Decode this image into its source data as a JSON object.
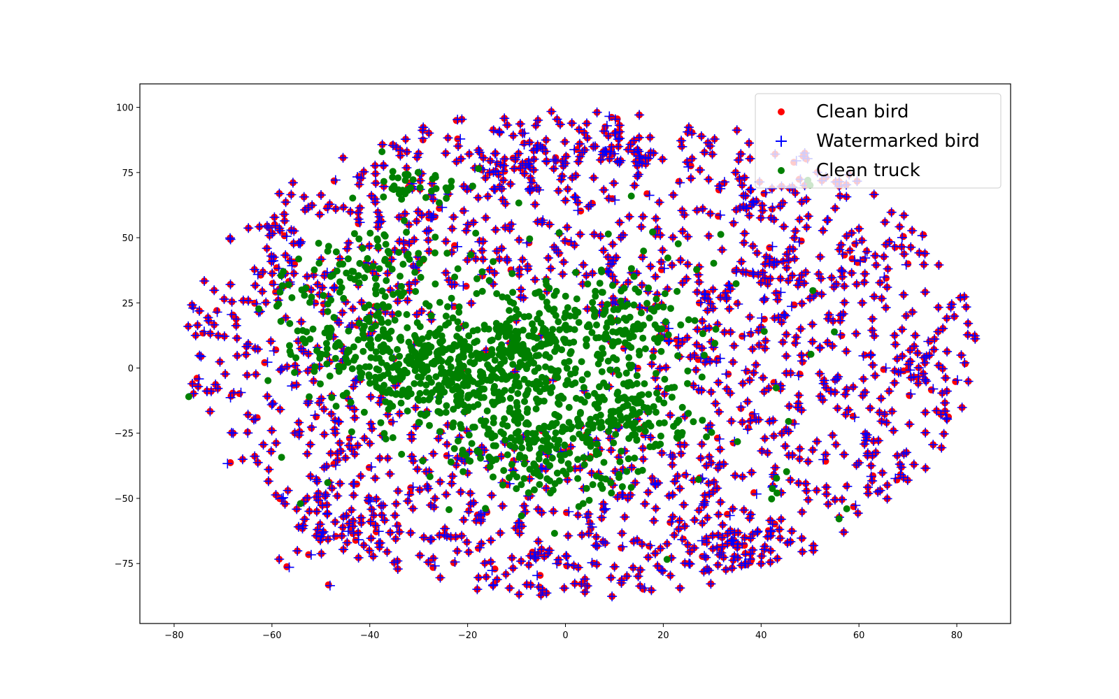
{
  "chart_data": {
    "type": "scatter",
    "title": "",
    "xlabel": "",
    "ylabel": "",
    "xlim": [
      -87,
      91
    ],
    "ylim": [
      -98,
      109
    ],
    "xticks": [
      -80,
      -60,
      -40,
      -20,
      0,
      20,
      40,
      60,
      80
    ],
    "yticks": [
      -75,
      -50,
      -25,
      0,
      25,
      50,
      75,
      100
    ],
    "x_tick_labels": [
      "−80",
      "−60",
      "−40",
      "−20",
      "0",
      "20",
      "40",
      "60",
      "80"
    ],
    "y_tick_labels": [
      "−75",
      "−50",
      "−25",
      "0",
      "25",
      "50",
      "75",
      "100"
    ],
    "grid": false,
    "legend_position": "top-right",
    "series": [
      {
        "name": "Clean bird",
        "marker": "circle",
        "color": "#ff0000",
        "distribution": "t-SNE embedding; points cover roughly x -79..83, y -88..100, coincident with the watermarked bird points",
        "notable_points": [
          [
            63.5,
            39.5
          ],
          [
            -61,
            54.5
          ],
          [
            -57.5,
            59
          ],
          [
            -49,
            -48.5
          ],
          [
            33,
            -8
          ],
          [
            -50.5,
            -48
          ]
        ]
      },
      {
        "name": "Watermarked bird",
        "marker": "plus",
        "color": "#0000ff",
        "distribution": "t-SNE embedding; same positions as clean bird points, plus small shifted clusters near (10,85), (-8,78), (35,-68), (-45,-62)"
      },
      {
        "name": "Clean truck",
        "marker": "circle",
        "color": "#008000",
        "distribution": "t-SNE embedding; dense cluster centered near (-25,0) and (5,15), spanning x -45..20, y -45..70, with scattered outliers",
        "notable_points": [
          [
            -77,
            -11
          ],
          [
            57.5,
            -54
          ],
          [
            -37.5,
            83
          ]
        ]
      }
    ]
  },
  "legend": {
    "items": [
      {
        "label": "Clean bird",
        "color": "#ff0000",
        "marker": "circle"
      },
      {
        "label": "Watermarked bird",
        "color": "#0000ff",
        "marker": "plus"
      },
      {
        "label": "Clean truck",
        "color": "#008000",
        "marker": "circle"
      }
    ]
  }
}
